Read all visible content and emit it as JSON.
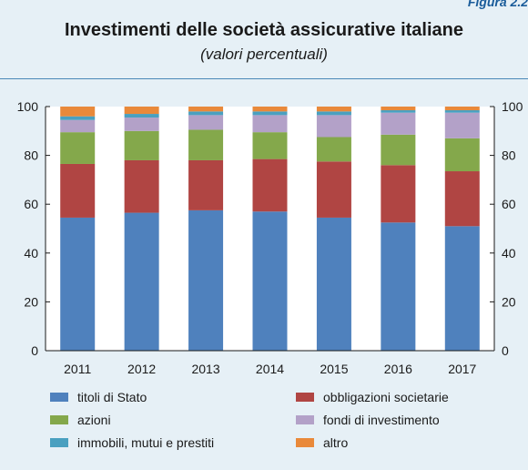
{
  "figure_label": "Figura 2.2",
  "chart_data": {
    "type": "bar",
    "stacked": true,
    "title": "Investimenti delle società assicurative italiane",
    "subtitle": "(valori percentuali)",
    "categories": [
      "2011",
      "2012",
      "2013",
      "2014",
      "2015",
      "2016",
      "2017"
    ],
    "ylim": [
      0,
      100
    ],
    "yticks": [
      0,
      20,
      40,
      60,
      80,
      100
    ],
    "secondary_axis": true,
    "grid": false,
    "legend_position": "bottom",
    "series": [
      {
        "name": "titoli di Stato",
        "color": "#4f81bd",
        "values": [
          54.5,
          56.5,
          57.5,
          57.0,
          54.5,
          52.5,
          51.0
        ]
      },
      {
        "name": "obbligazioni societarie",
        "color": "#b04543",
        "values": [
          22.0,
          21.5,
          20.5,
          21.5,
          23.0,
          23.5,
          22.5
        ]
      },
      {
        "name": "azioni",
        "color": "#84a84b",
        "values": [
          13.0,
          12.0,
          12.5,
          11.0,
          10.0,
          12.5,
          13.5
        ]
      },
      {
        "name": "fondi di investimento",
        "color": "#b3a1c8",
        "values": [
          5.0,
          5.5,
          6.0,
          7.0,
          9.0,
          9.0,
          10.5
        ]
      },
      {
        "name": "immobili, mutui e prestiti",
        "color": "#4aa0c0",
        "values": [
          1.5,
          1.5,
          1.5,
          1.5,
          1.5,
          1.0,
          1.0
        ]
      },
      {
        "name": "altro",
        "color": "#e9893a",
        "values": [
          4.0,
          3.0,
          2.0,
          2.0,
          2.0,
          1.5,
          1.5
        ]
      }
    ]
  }
}
